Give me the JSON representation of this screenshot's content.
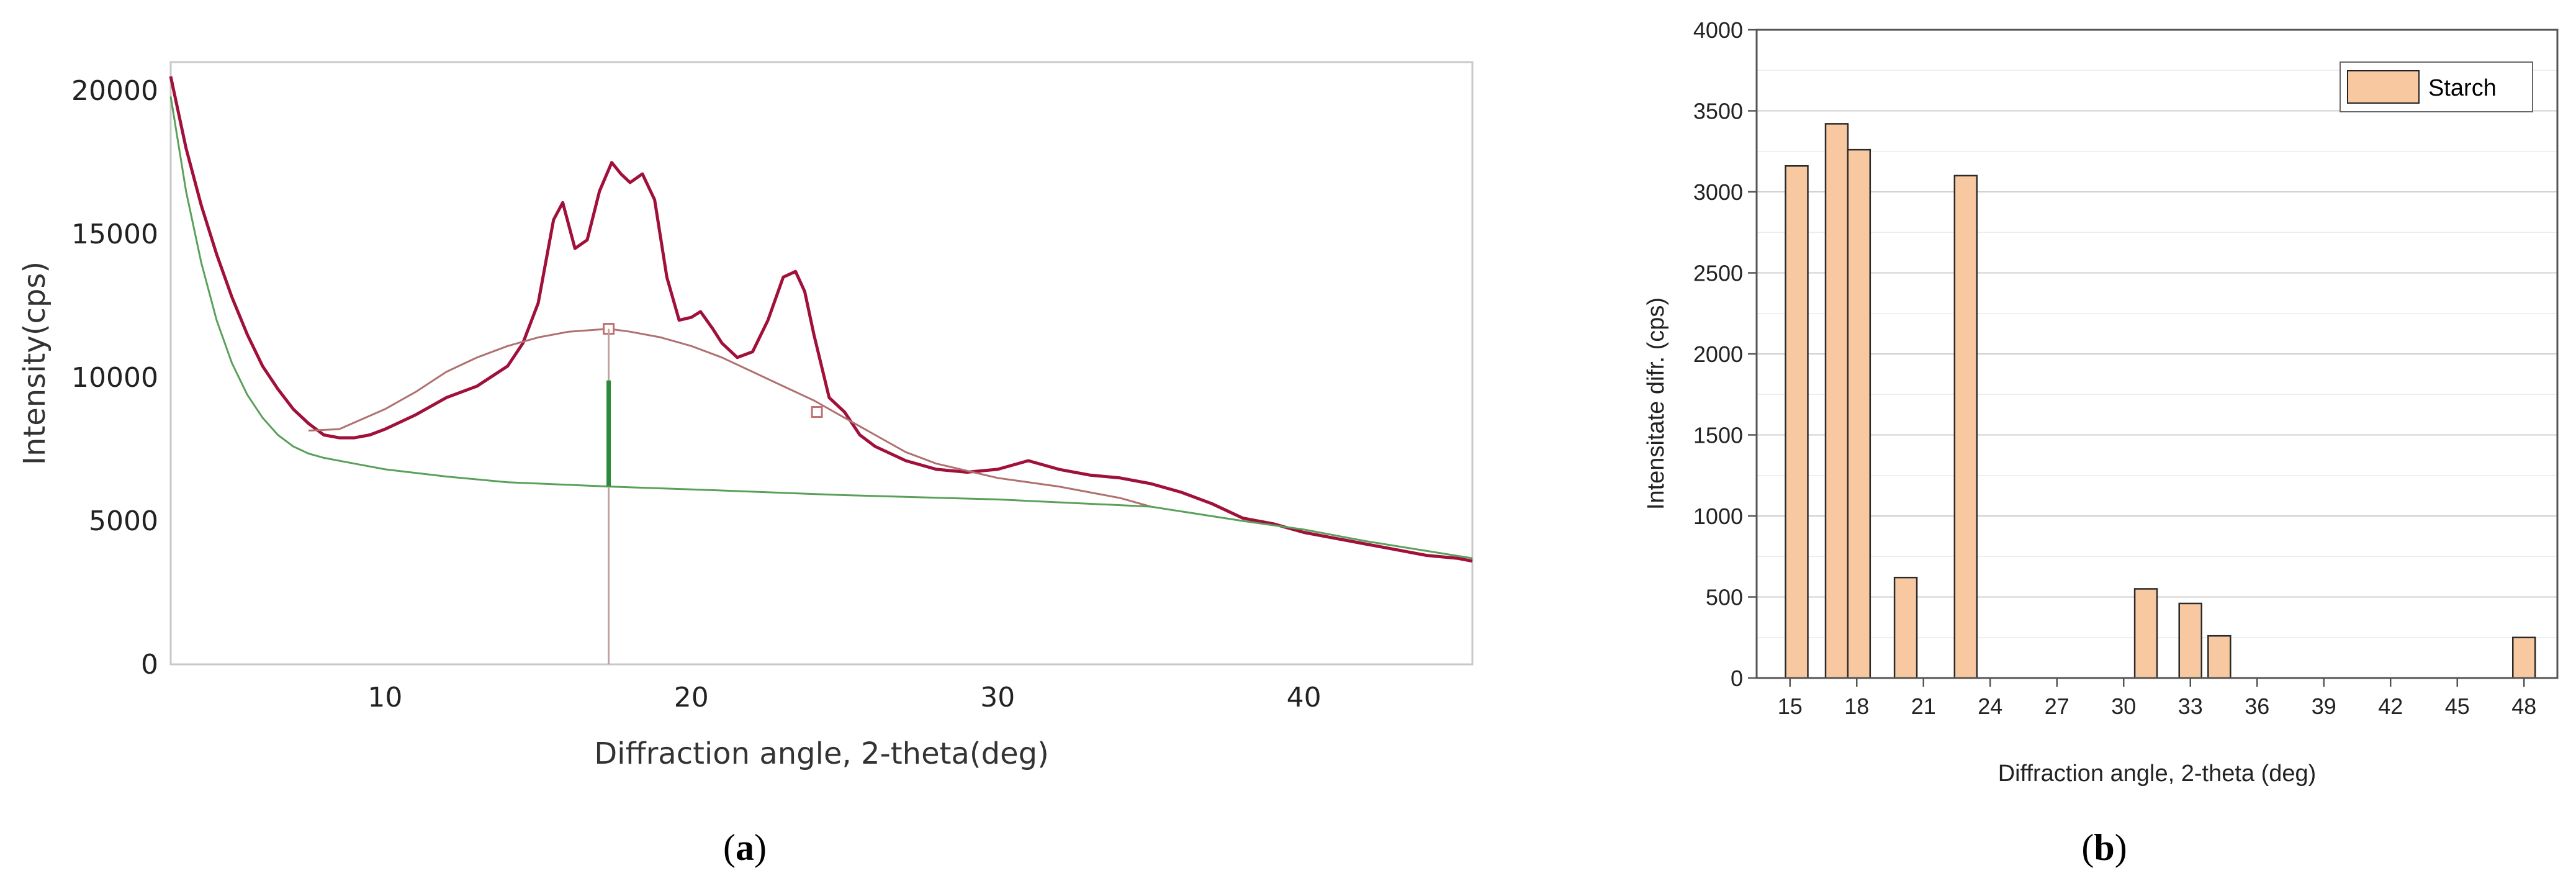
{
  "chart_data": [
    {
      "type": "line",
      "xlabel": "Diffraction angle, 2-theta(deg)",
      "ylabel": "Intensity(cps)",
      "xlim": [
        3,
        45.5
      ],
      "ylim": [
        0,
        21000
      ],
      "x_ticks": [
        10,
        20,
        30,
        40
      ],
      "y_ticks": [
        0,
        5000,
        10000,
        15000,
        20000
      ],
      "x_tick_labels": [
        "10",
        "20",
        "30",
        "40"
      ],
      "y_tick_labels": [
        "0",
        "5000",
        "10000",
        "15000",
        "20000"
      ],
      "grid": false,
      "series": [
        {
          "color": "#a0103a",
          "x": [
            3,
            3.5,
            4,
            4.5,
            5,
            5.5,
            6,
            6.5,
            7,
            7.5,
            8,
            8.5,
            9,
            9.5,
            10,
            11,
            12,
            13,
            14,
            14.5,
            15,
            15.5,
            15.8,
            16.2,
            16.6,
            17,
            17.4,
            17.7,
            18,
            18.4,
            18.8,
            19.2,
            19.6,
            20,
            20.3,
            20.7,
            21,
            21.5,
            22,
            22.5,
            23,
            23.4,
            23.7,
            24,
            24.5,
            25,
            25.5,
            26,
            27,
            28,
            29,
            30,
            31,
            32,
            33,
            34,
            35,
            36,
            37,
            38,
            39,
            40,
            41,
            42,
            43,
            44,
            45,
            45.5
          ],
          "y": [
            20500,
            18000,
            16000,
            14300,
            12800,
            11500,
            10400,
            9600,
            8900,
            8400,
            8000,
            7900,
            7900,
            8000,
            8200,
            8700,
            9300,
            9700,
            10400,
            11200,
            12600,
            15500,
            16100,
            14500,
            14800,
            16500,
            17500,
            17100,
            16800,
            17100,
            16200,
            13500,
            12000,
            12100,
            12300,
            11700,
            11200,
            10700,
            10900,
            12000,
            13500,
            13700,
            13000,
            11500,
            9300,
            8800,
            8000,
            7600,
            7100,
            6800,
            6700,
            6800,
            7100,
            6800,
            6600,
            6500,
            6300,
            6000,
            5600,
            5100,
            4900,
            4600,
            4400,
            4200,
            4000,
            3800,
            3700,
            3600
          ]
        },
        {
          "color": "#b07070",
          "x": [
            7.5,
            8.5,
            10,
            11,
            12,
            13,
            14,
            15,
            16,
            17.3,
            18,
            19,
            20,
            21,
            22,
            23,
            24,
            25,
            26,
            27,
            28,
            30,
            32,
            34,
            35
          ],
          "y": [
            8150,
            8200,
            8900,
            9500,
            10200,
            10700,
            11100,
            11400,
            11600,
            11700,
            11600,
            11400,
            11100,
            10700,
            10200,
            9700,
            9200,
            8600,
            8000,
            7400,
            7000,
            6500,
            6200,
            5800,
            5500
          ]
        },
        {
          "color": "#5aa05a",
          "x": [
            3,
            3.5,
            4,
            4.5,
            5,
            5.5,
            6,
            6.5,
            7,
            7.5,
            8,
            9,
            10,
            12,
            14,
            17.3,
            20,
            25,
            30,
            35,
            38,
            40,
            42,
            45.5
          ],
          "y": [
            19800,
            16500,
            14000,
            12000,
            10500,
            9400,
            8600,
            8000,
            7600,
            7350,
            7200,
            7000,
            6800,
            6550,
            6350,
            6200,
            6100,
            5900,
            5750,
            5500,
            5000,
            4700,
            4300,
            3700
          ]
        }
      ],
      "annotations": [
        {
          "type": "peak-marker",
          "x": 17.3,
          "y": 11700
        },
        {
          "type": "point-marker",
          "x": 24.1,
          "y": 8800
        },
        {
          "type": "vertical-line",
          "x": 17.3,
          "y_from": 0,
          "y_to": 11700
        },
        {
          "type": "vertical-segment",
          "x": 17.3,
          "y_from": 6200,
          "y_to": 9900
        }
      ],
      "panel_label": "(a)"
    },
    {
      "type": "bar",
      "xlabel": "Diffraction angle, 2-theta (deg)",
      "ylabel": "Intensitate difr. (cps)",
      "xlim": [
        13.5,
        49.5
      ],
      "ylim": [
        0,
        4000
      ],
      "x_ticks": [
        15,
        18,
        21,
        24,
        27,
        30,
        33,
        36,
        39,
        42,
        45,
        48
      ],
      "y_ticks": [
        0,
        500,
        1000,
        1500,
        2000,
        2500,
        3000,
        3500,
        4000
      ],
      "x_tick_labels": [
        "15",
        "18",
        "21",
        "24",
        "27",
        "30",
        "33",
        "36",
        "39",
        "42",
        "45",
        "48"
      ],
      "y_tick_labels": [
        "0",
        "500",
        "1000",
        "1500",
        "2000",
        "2500",
        "3000",
        "3500",
        "4000"
      ],
      "grid": true,
      "legend_position": "top-right",
      "series": [
        {
          "name": "Starch",
          "color": "#f8c8a0",
          "x": [
            15.3,
            17.1,
            18.1,
            20.2,
            22.9,
            31.0,
            33.0,
            34.3,
            48.0
          ],
          "values": [
            3160,
            3420,
            3260,
            620,
            3100,
            550,
            460,
            260,
            250
          ]
        }
      ],
      "panel_label": "(b)"
    }
  ],
  "labels": {
    "a": {
      "open": "(",
      "letter": "a",
      "close": ")"
    },
    "b": {
      "open": "(",
      "letter": "b",
      "close": ")"
    }
  }
}
